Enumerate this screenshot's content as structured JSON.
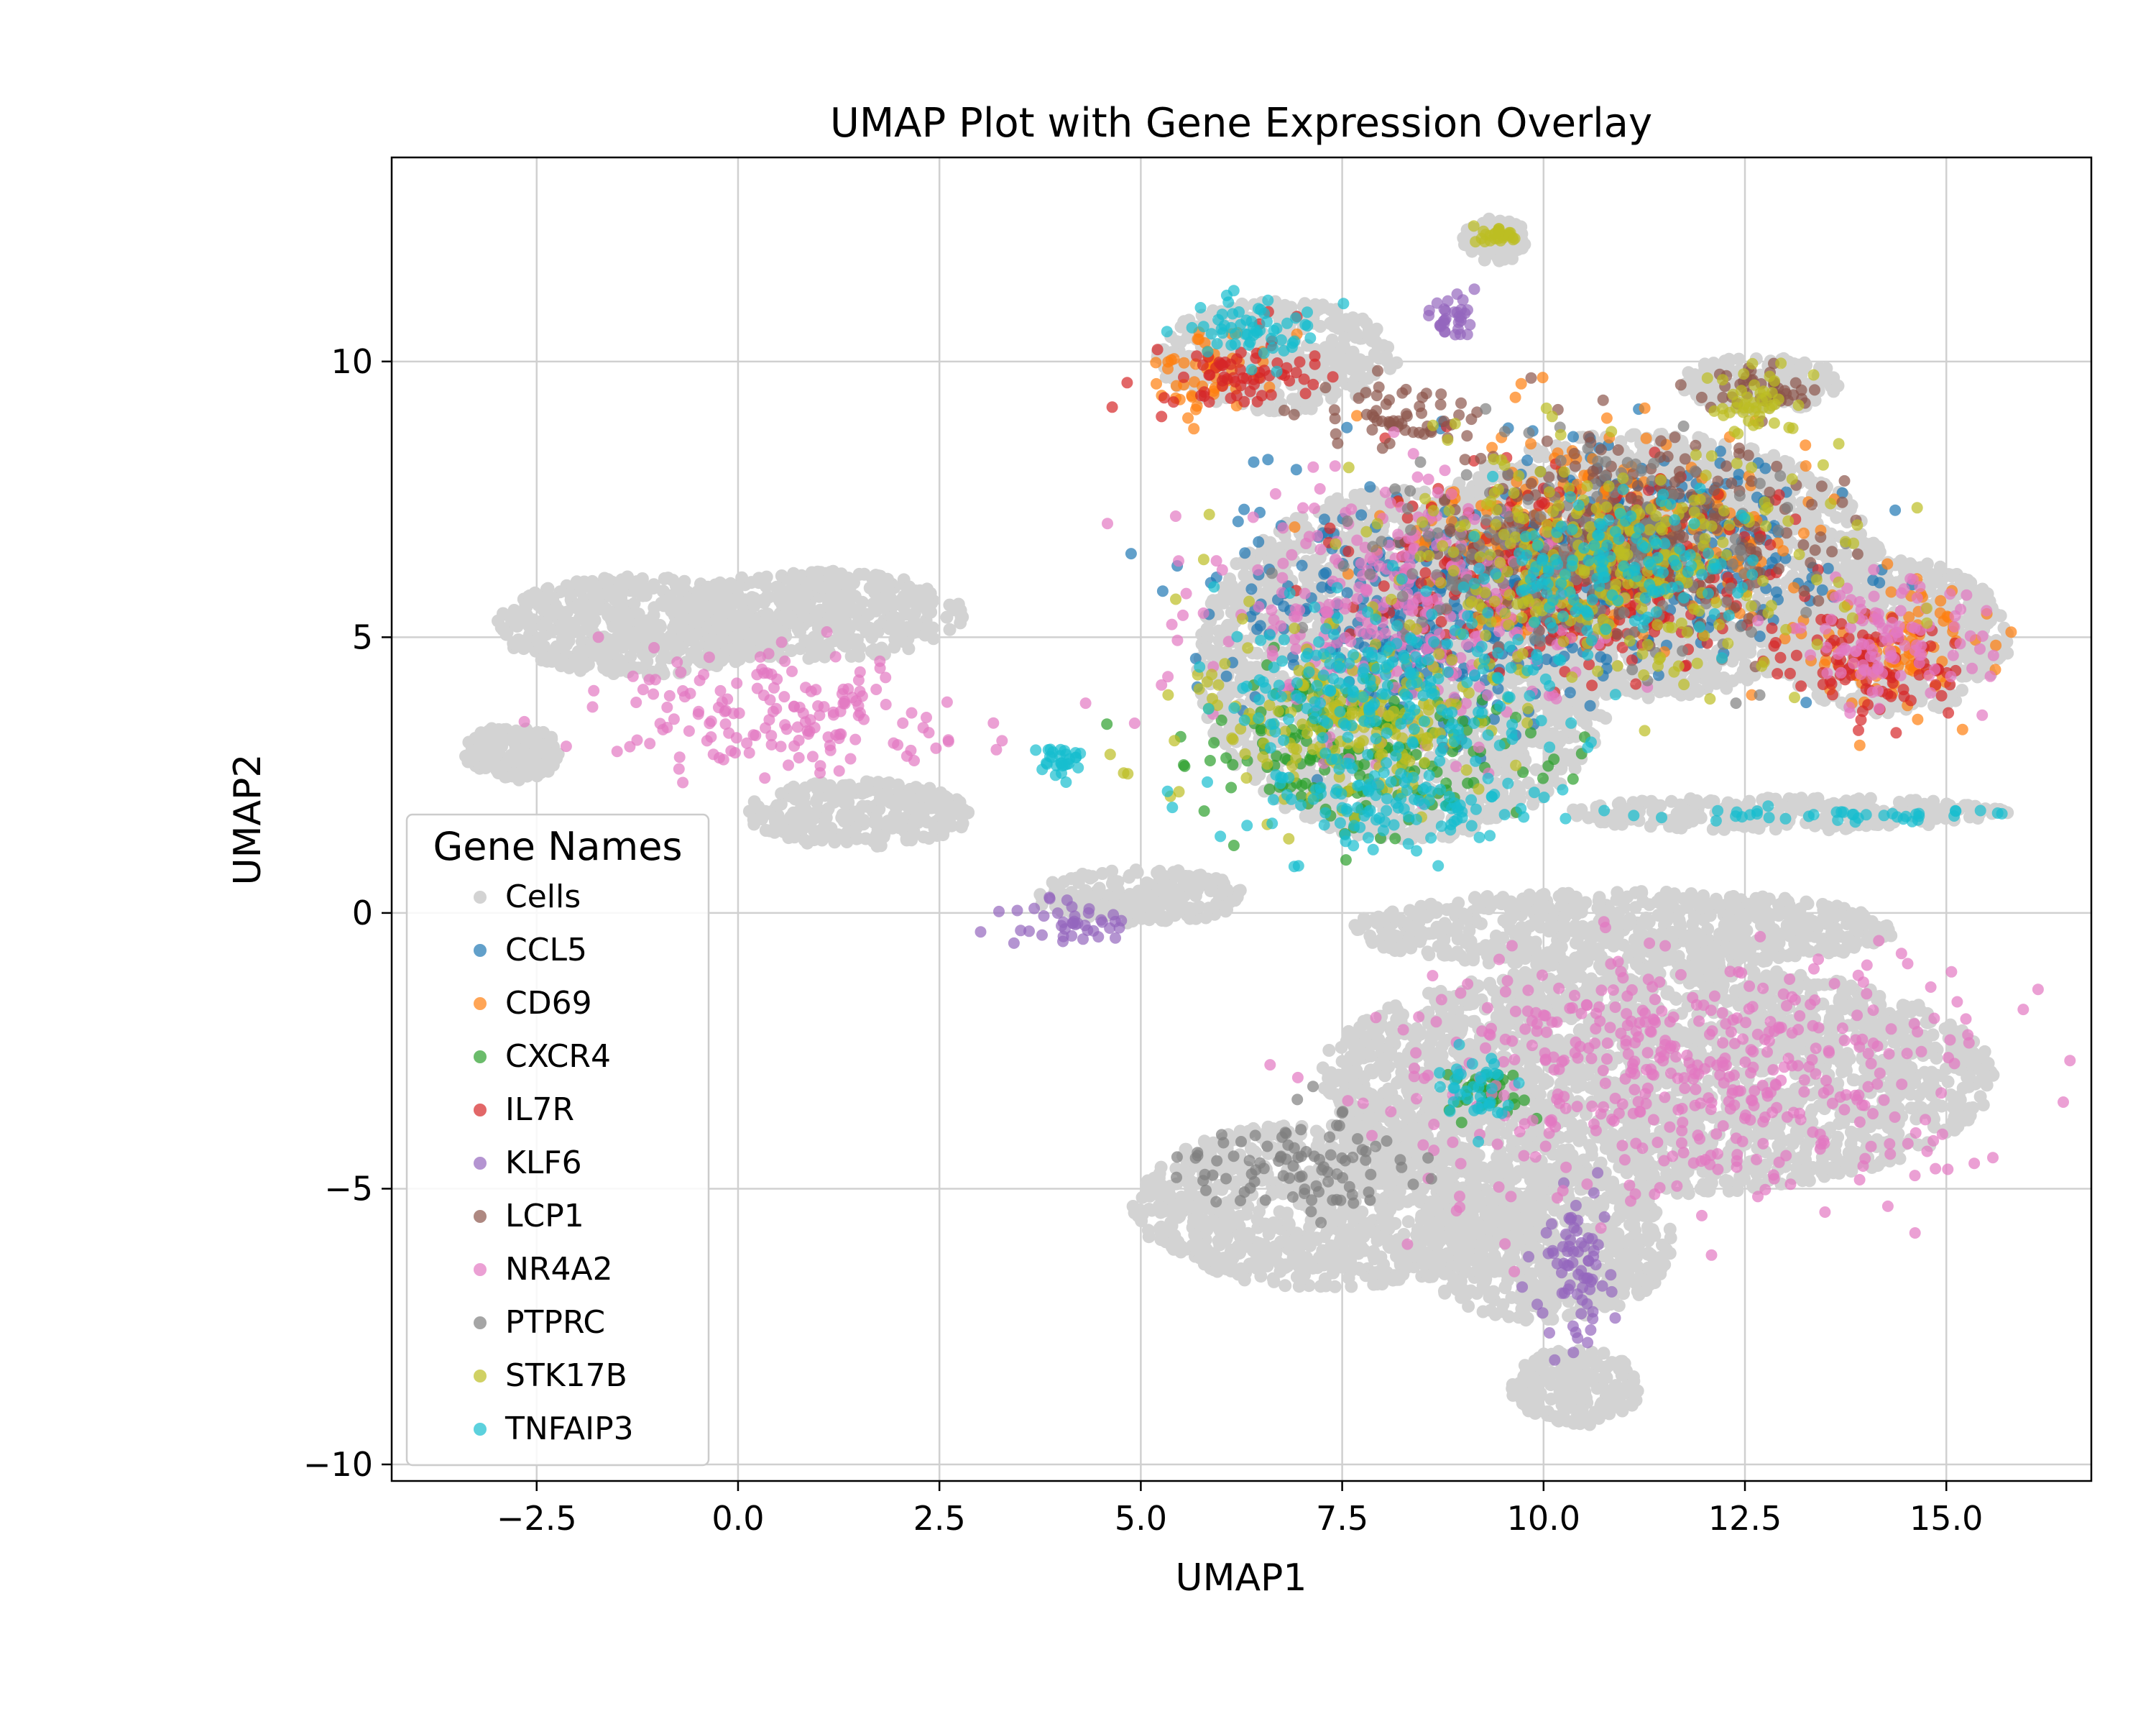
{
  "chart_data": {
    "type": "scatter",
    "title": "UMAP Plot with Gene Expression Overlay",
    "xlabel": "UMAP1",
    "ylabel": "UMAP2",
    "xlim": [
      -4.3,
      16.8
    ],
    "ylim": [
      -10.3,
      13.7
    ],
    "xticks": [
      -2.5,
      0.0,
      2.5,
      5.0,
      7.5,
      10.0,
      12.5,
      15.0
    ],
    "xtick_labels": [
      "−2.5",
      "0.0",
      "2.5",
      "5.0",
      "7.5",
      "10.0",
      "12.5",
      "15.0"
    ],
    "yticks": [
      -10,
      -5,
      0,
      5,
      10
    ],
    "ytick_labels": [
      "−10",
      "−5",
      "0",
      "5",
      "10"
    ],
    "grid": true,
    "legend": {
      "title": "Gene Names",
      "placement": "lower-left"
    },
    "background_series": {
      "name": "Cells",
      "color": "#d3d3d3",
      "regions": [
        {
          "cx": -1.2,
          "cy": 5.2,
          "rx": 1.8,
          "ry": 0.9
        },
        {
          "cx": 1.0,
          "cy": 5.4,
          "rx": 1.8,
          "ry": 0.8
        },
        {
          "cx": -2.8,
          "cy": 2.9,
          "rx": 0.6,
          "ry": 0.5
        },
        {
          "cx": 1.5,
          "cy": 1.8,
          "rx": 1.4,
          "ry": 0.6
        },
        {
          "cx": 5.0,
          "cy": 0.3,
          "rx": 1.3,
          "ry": 0.5
        },
        {
          "cx": 8.3,
          "cy": 4.5,
          "rx": 2.6,
          "ry": 3.2
        },
        {
          "cx": 11.2,
          "cy": 6.3,
          "rx": 3.0,
          "ry": 2.4
        },
        {
          "cx": 14.3,
          "cy": 5.0,
          "rx": 1.5,
          "ry": 1.4
        },
        {
          "cx": 13.0,
          "cy": 1.8,
          "rx": 2.8,
          "ry": 0.3
        },
        {
          "cx": 11.0,
          "cy": -0.3,
          "rx": 3.4,
          "ry": 0.7
        },
        {
          "cx": 11.4,
          "cy": -3.0,
          "rx": 4.2,
          "ry": 2.1
        },
        {
          "cx": 7.3,
          "cy": -5.3,
          "rx": 2.4,
          "ry": 1.5
        },
        {
          "cx": 10.0,
          "cy": -6.0,
          "rx": 1.6,
          "ry": 1.4
        },
        {
          "cx": 10.4,
          "cy": -8.6,
          "rx": 0.8,
          "ry": 0.7
        },
        {
          "cx": 6.7,
          "cy": 10.1,
          "rx": 1.5,
          "ry": 1.0
        },
        {
          "cx": 9.4,
          "cy": 12.2,
          "rx": 0.4,
          "ry": 0.4
        },
        {
          "cx": 12.7,
          "cy": 9.6,
          "rx": 1.0,
          "ry": 0.5
        }
      ]
    },
    "series": [
      {
        "name": "CCL5",
        "color": "#1f77b4",
        "regions": [
          {
            "cx": 8.5,
            "cy": 5.5,
            "rx": 2.8,
            "ry": 2.3
          },
          {
            "cx": 11.3,
            "cy": 6.7,
            "rx": 2.3,
            "ry": 2.0
          }
        ]
      },
      {
        "name": "CD69",
        "color": "#ff7f0e",
        "regions": [
          {
            "cx": 10.8,
            "cy": 6.8,
            "rx": 2.8,
            "ry": 2.0
          },
          {
            "cx": 14.5,
            "cy": 4.8,
            "rx": 1.3,
            "ry": 1.2
          },
          {
            "cx": 5.8,
            "cy": 9.8,
            "rx": 0.8,
            "ry": 0.8
          }
        ]
      },
      {
        "name": "CXCR4",
        "color": "#2ca02c",
        "regions": [
          {
            "cx": 7.8,
            "cy": 3.0,
            "rx": 2.3,
            "ry": 1.6
          },
          {
            "cx": 9.3,
            "cy": -3.2,
            "rx": 0.5,
            "ry": 0.5
          }
        ]
      },
      {
        "name": "IL7R",
        "color": "#d62728",
        "regions": [
          {
            "cx": 10.5,
            "cy": 6.2,
            "rx": 2.8,
            "ry": 2.2
          },
          {
            "cx": 6.2,
            "cy": 9.8,
            "rx": 1.2,
            "ry": 0.8
          },
          {
            "cx": 14.0,
            "cy": 4.5,
            "rx": 1.3,
            "ry": 1.0
          }
        ]
      },
      {
        "name": "KLF6",
        "color": "#9467bd",
        "regions": [
          {
            "cx": 10.4,
            "cy": -6.5,
            "rx": 0.6,
            "ry": 1.8
          },
          {
            "cx": 8.9,
            "cy": 10.8,
            "rx": 0.3,
            "ry": 0.5
          },
          {
            "cx": 4.2,
            "cy": -0.2,
            "rx": 0.9,
            "ry": 0.4
          }
        ]
      },
      {
        "name": "LCP1",
        "color": "#8c564b",
        "regions": [
          {
            "cx": 11.0,
            "cy": 6.8,
            "rx": 2.6,
            "ry": 2.0
          },
          {
            "cx": 8.1,
            "cy": 9.0,
            "rx": 1.2,
            "ry": 0.6
          },
          {
            "cx": 12.6,
            "cy": 9.5,
            "rx": 0.8,
            "ry": 0.5
          }
        ]
      },
      {
        "name": "NR4A2",
        "color": "#e377c2",
        "regions": [
          {
            "cx": 11.8,
            "cy": -2.8,
            "rx": 3.8,
            "ry": 2.6
          },
          {
            "cx": 0.5,
            "cy": 3.6,
            "rx": 2.6,
            "ry": 1.2
          },
          {
            "cx": 14.3,
            "cy": 5.0,
            "rx": 1.3,
            "ry": 1.4
          },
          {
            "cx": 8.2,
            "cy": 5.5,
            "rx": 2.6,
            "ry": 2.5
          }
        ]
      },
      {
        "name": "PTPRC",
        "color": "#7f7f7f",
        "regions": [
          {
            "cx": 10.5,
            "cy": 6.5,
            "rx": 2.8,
            "ry": 2.0
          },
          {
            "cx": 7.0,
            "cy": -4.5,
            "rx": 1.5,
            "ry": 1.0
          }
        ]
      },
      {
        "name": "STK17B",
        "color": "#bcbd22",
        "regions": [
          {
            "cx": 10.8,
            "cy": 6.4,
            "rx": 3.0,
            "ry": 2.2
          },
          {
            "cx": 7.6,
            "cy": 3.5,
            "rx": 2.2,
            "ry": 1.8
          },
          {
            "cx": 12.6,
            "cy": 9.3,
            "rx": 0.7,
            "ry": 0.6
          },
          {
            "cx": 9.4,
            "cy": 12.3,
            "rx": 0.3,
            "ry": 0.2
          }
        ]
      },
      {
        "name": "TNFAIP3",
        "color": "#17becf",
        "regions": [
          {
            "cx": 8.3,
            "cy": 2.0,
            "rx": 1.9,
            "ry": 1.0
          },
          {
            "cx": 8.0,
            "cy": 4.0,
            "rx": 2.4,
            "ry": 1.8
          },
          {
            "cx": 10.8,
            "cy": 6.2,
            "rx": 1.8,
            "ry": 1.5
          },
          {
            "cx": 6.4,
            "cy": 10.7,
            "rx": 0.9,
            "ry": 0.8
          },
          {
            "cx": 13.5,
            "cy": 1.75,
            "rx": 2.3,
            "ry": 0.15
          },
          {
            "cx": 4.0,
            "cy": 2.8,
            "rx": 0.3,
            "ry": 0.3
          },
          {
            "cx": 9.2,
            "cy": -3.2,
            "rx": 0.5,
            "ry": 0.6
          }
        ]
      }
    ]
  }
}
